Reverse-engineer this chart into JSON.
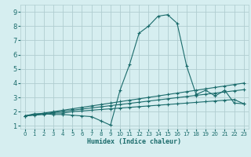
{
  "xlabel": "Humidex (Indice chaleur)",
  "ylabel": "",
  "bg_color": "#d6eef0",
  "grid_color": "#b0cdd0",
  "line_color": "#1a6b6b",
  "xlim": [
    -0.5,
    23.5
  ],
  "ylim": [
    0.8,
    9.5
  ],
  "xticks": [
    0,
    1,
    2,
    3,
    4,
    5,
    6,
    7,
    8,
    9,
    10,
    11,
    12,
    13,
    14,
    15,
    16,
    17,
    18,
    19,
    20,
    21,
    22,
    23
  ],
  "yticks": [
    1,
    2,
    3,
    4,
    5,
    6,
    7,
    8,
    9
  ],
  "series": [
    {
      "x": [
        0,
        1,
        2,
        3,
        4,
        5,
        6,
        7,
        8,
        9,
        10,
        11,
        12,
        13,
        14,
        15,
        16,
        17,
        18,
        19,
        20,
        21,
        22,
        23
      ],
      "y": [
        1.7,
        1.85,
        1.85,
        1.8,
        1.8,
        1.75,
        1.7,
        1.65,
        1.35,
        1.05,
        3.5,
        5.3,
        7.5,
        8.0,
        8.7,
        8.8,
        8.2,
        5.2,
        3.2,
        3.5,
        3.1,
        3.5,
        2.6,
        2.55
      ]
    },
    {
      "x": [
        0,
        1,
        2,
        3,
        4,
        5,
        6,
        7,
        8,
        9,
        10,
        11,
        12,
        13,
        14,
        15,
        16,
        17,
        18,
        19,
        20,
        21,
        22,
        23
      ],
      "y": [
        1.7,
        1.75,
        1.8,
        1.9,
        1.9,
        2.0,
        2.05,
        2.1,
        2.15,
        2.2,
        2.25,
        2.3,
        2.35,
        2.4,
        2.45,
        2.5,
        2.55,
        2.6,
        2.65,
        2.7,
        2.75,
        2.8,
        2.85,
        2.55
      ]
    },
    {
      "x": [
        0,
        1,
        2,
        3,
        4,
        5,
        6,
        7,
        8,
        9,
        10,
        11,
        12,
        13,
        14,
        15,
        16,
        17,
        18,
        19,
        20,
        21,
        22,
        23
      ],
      "y": [
        1.7,
        1.8,
        1.9,
        2.0,
        2.1,
        2.2,
        2.3,
        2.4,
        2.5,
        2.6,
        2.7,
        2.8,
        2.9,
        3.0,
        3.1,
        3.2,
        3.3,
        3.4,
        3.5,
        3.6,
        3.7,
        3.8,
        3.9,
        4.0
      ]
    },
    {
      "x": [
        0,
        1,
        2,
        3,
        4,
        5,
        6,
        7,
        8,
        9,
        10,
        11,
        12,
        13,
        14,
        15,
        16,
        17,
        18,
        19,
        20,
        21,
        22,
        23
      ],
      "y": [
        1.7,
        1.78,
        1.86,
        1.94,
        2.02,
        2.1,
        2.18,
        2.26,
        2.34,
        2.42,
        2.5,
        2.58,
        2.66,
        2.74,
        2.82,
        2.9,
        2.98,
        3.06,
        3.14,
        3.22,
        3.3,
        3.38,
        3.46,
        3.54
      ]
    }
  ]
}
